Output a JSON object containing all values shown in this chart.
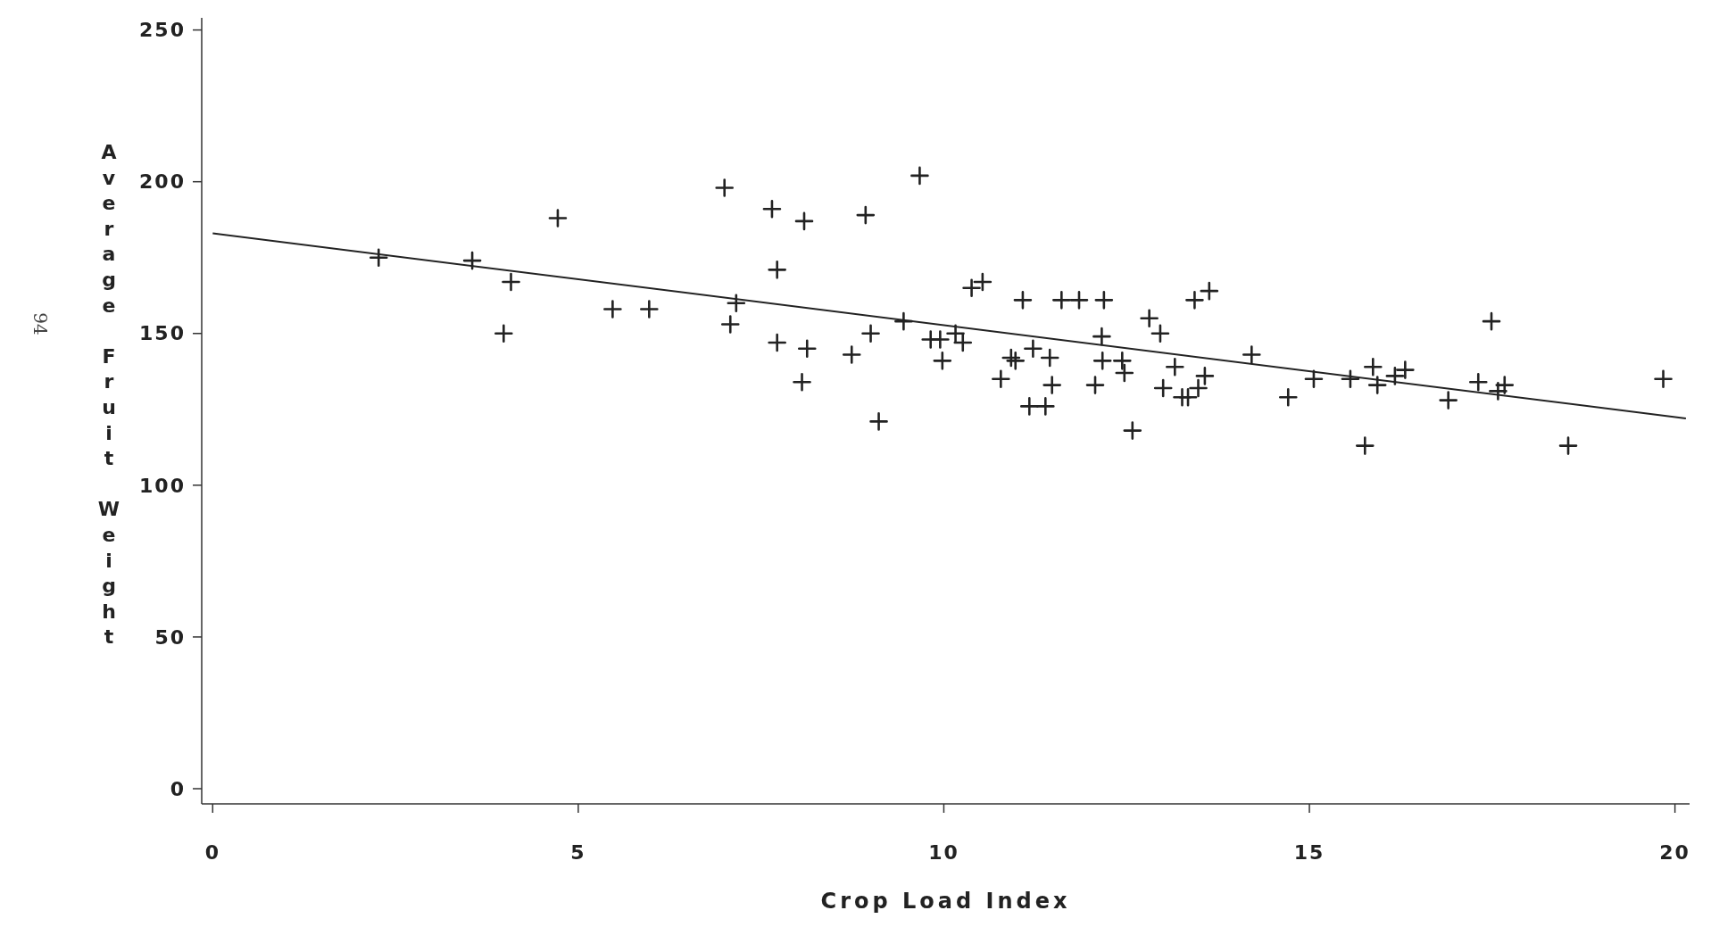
{
  "chart_data": {
    "type": "scatter",
    "xlabel": "Crop Load Index",
    "ylabel": "Average Fruit Weight",
    "annotations": [
      "94"
    ],
    "xlim": [
      -0.15,
      20.2
    ],
    "ylim": [
      -5,
      254
    ],
    "xticks": [
      0,
      5,
      10,
      15,
      20
    ],
    "yticks": [
      0,
      50,
      100,
      150,
      200,
      250
    ],
    "grid": false,
    "series": [
      {
        "color": "#222222",
        "marker": "cross",
        "x": [
          2.27,
          3.55,
          3.98,
          4.08,
          4.72,
          5.47,
          5.97,
          7.0,
          7.08,
          7.16,
          7.65,
          7.72,
          7.72,
          8.09,
          8.13,
          8.06,
          8.74,
          8.93,
          9.0,
          9.11,
          9.45,
          9.67,
          9.82,
          9.95,
          9.98,
          10.16,
          10.26,
          10.38,
          10.53,
          10.78,
          10.92,
          10.98,
          11.08,
          11.17,
          11.22,
          11.39,
          11.45,
          11.48,
          11.61,
          11.85,
          12.07,
          12.16,
          12.17,
          12.19,
          12.44,
          12.47,
          12.58,
          12.81,
          12.96,
          13.0,
          13.16,
          13.26,
          13.34,
          13.43,
          13.48,
          13.57,
          13.63,
          14.21,
          14.71,
          15.06,
          15.56,
          15.76,
          15.87,
          15.93,
          16.17,
          16.31,
          16.9,
          17.31,
          17.49,
          17.58,
          17.67,
          18.54,
          19.84
        ],
        "values": [
          175,
          174,
          150,
          167,
          188,
          158,
          158,
          198,
          153,
          160,
          191,
          171,
          147,
          187,
          145,
          134,
          143,
          189,
          150,
          121,
          154,
          202,
          148,
          148,
          141,
          150,
          147,
          165,
          167,
          135,
          142,
          141,
          161,
          126,
          145,
          126,
          142,
          133,
          161,
          161,
          133,
          149,
          141,
          161,
          141,
          137,
          118,
          155,
          150,
          132,
          139,
          129,
          129,
          161,
          132,
          136,
          164,
          143,
          129,
          135,
          135,
          113,
          139,
          133,
          136,
          138,
          128,
          134,
          154,
          131,
          133,
          113,
          135
        ]
      },
      {
        "type": "line",
        "color": "#222222",
        "line_style": "solid",
        "x": [
          0,
          20.15
        ],
        "values": [
          183,
          122
        ]
      }
    ]
  }
}
